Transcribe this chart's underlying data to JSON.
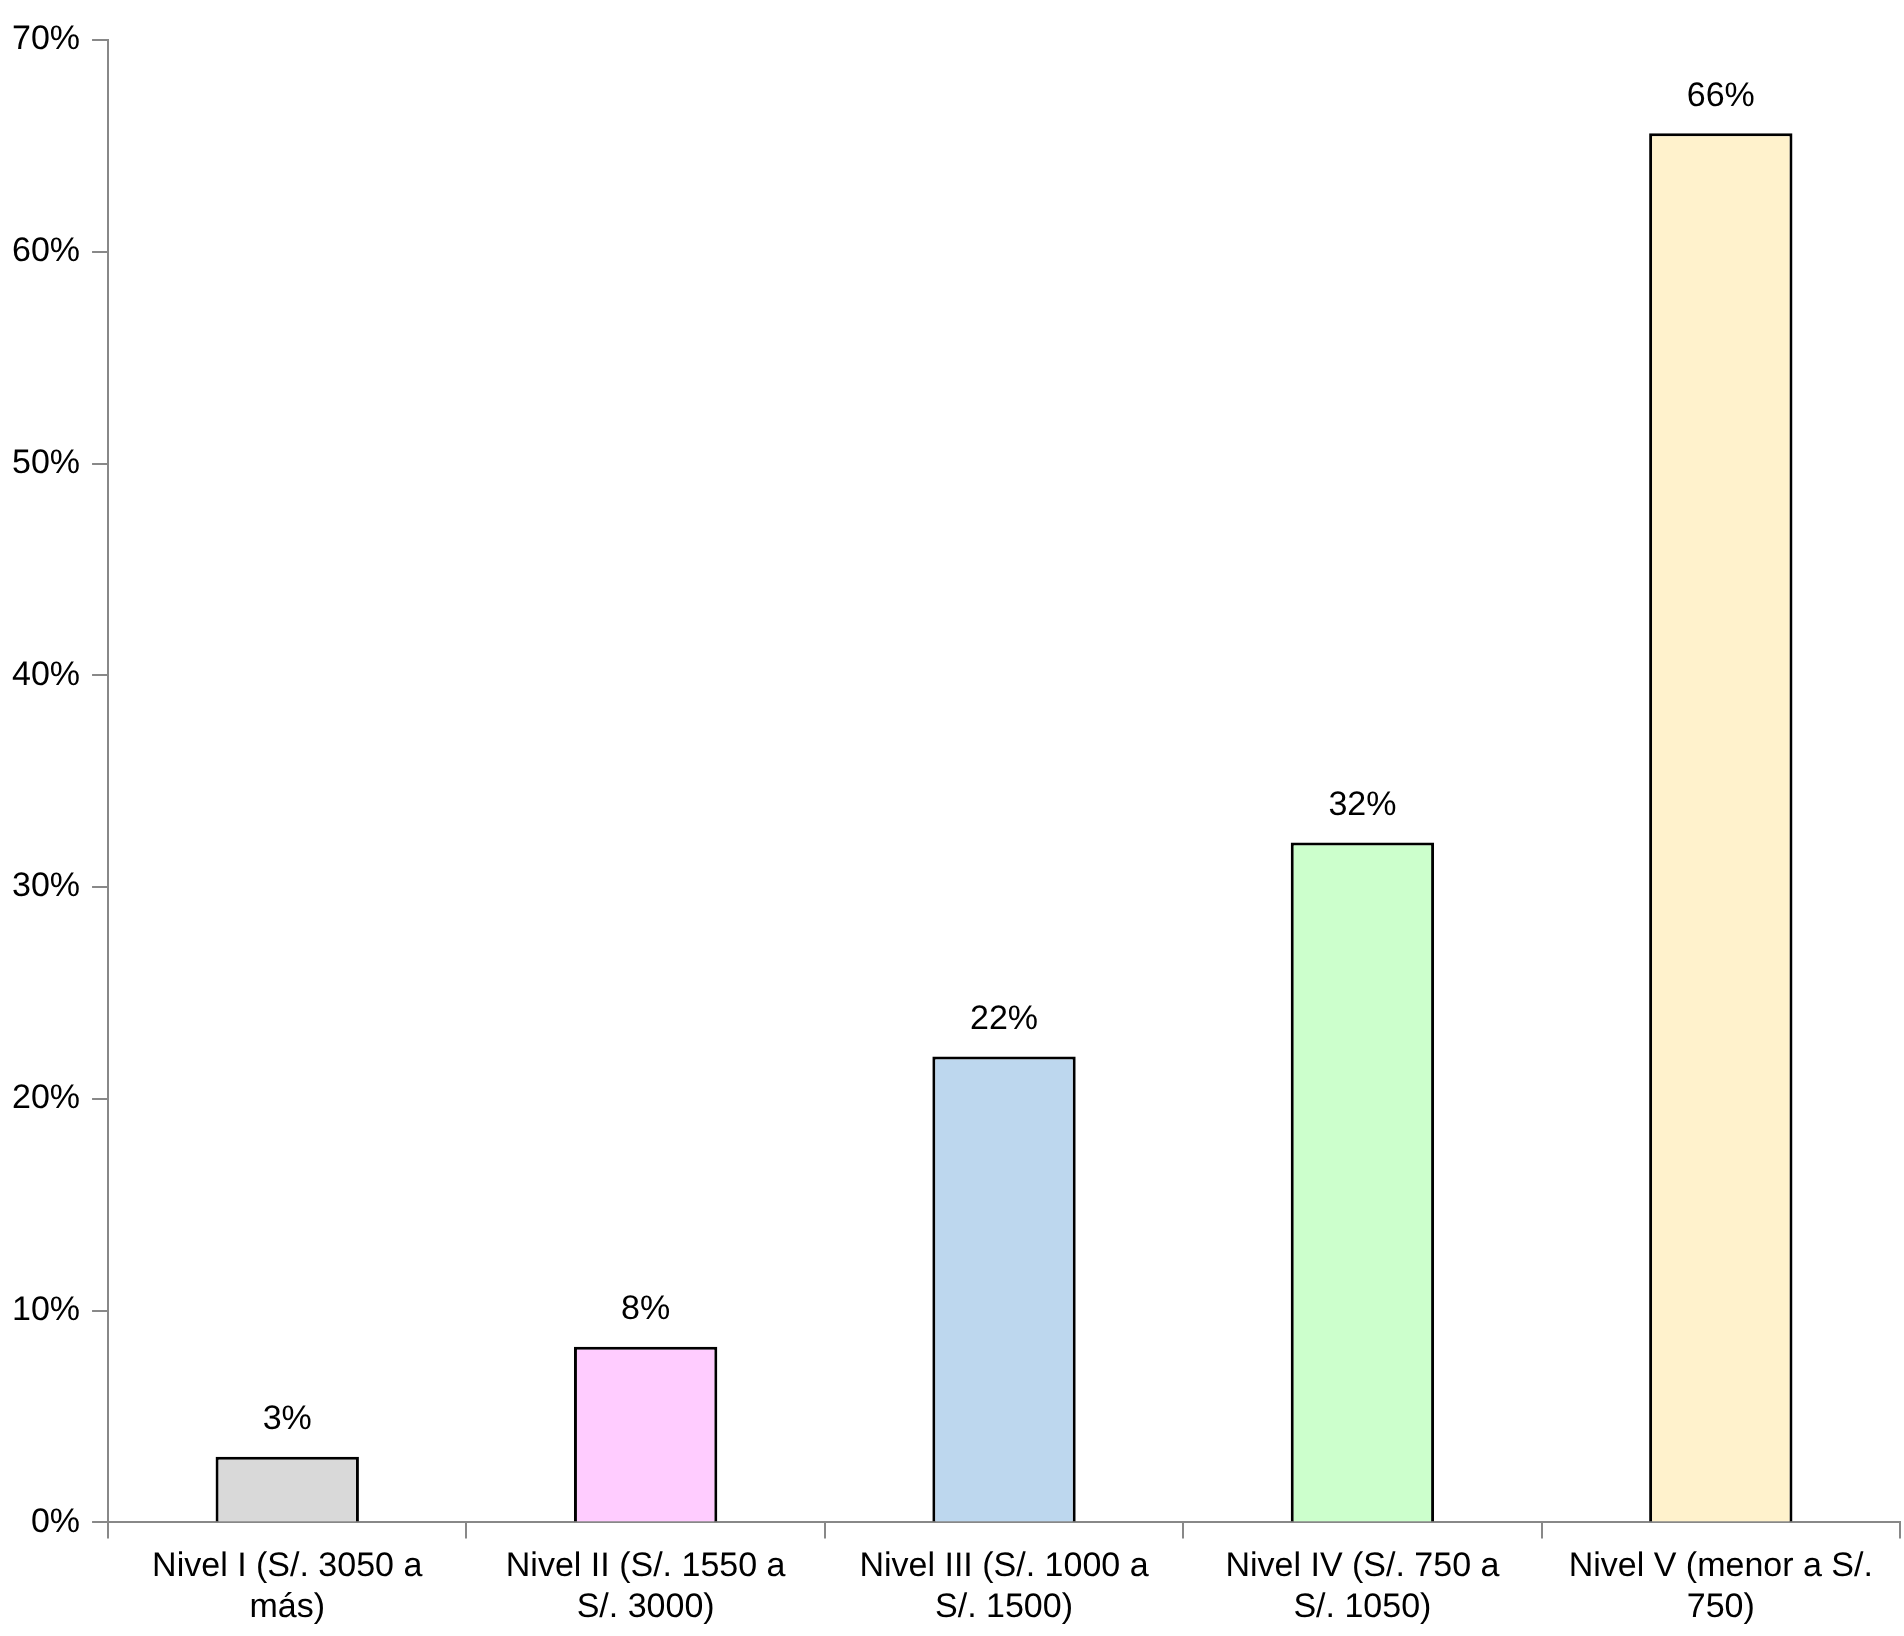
{
  "chart_data": {
    "type": "bar",
    "categories": [
      "Nivel I (S/. 3050 a más)",
      "Nivel II (S/. 1550 a S/. 3000)",
      "Nivel III (S/. 1000 a S/. 1500)",
      "Nivel IV (S/. 750 a S/. 1050)",
      "Nivel V (menor a S/. 750)"
    ],
    "values": [
      3.1,
      8.3,
      22,
      32.1,
      65.6
    ],
    "colors": [
      "#d9d9d9",
      "#ffccff",
      "#bdd7ee",
      "#ccffcc",
      "#fff2cc"
    ],
    "value_labels": [
      "3%",
      "8%",
      "22%",
      "32%",
      "66%"
    ],
    "ylim": [
      0,
      70
    ],
    "yticks": [
      {
        "value": 0,
        "label": "0%"
      },
      {
        "value": 10,
        "label": "10%"
      },
      {
        "value": 20,
        "label": "20%"
      },
      {
        "value": 30,
        "label": "30%"
      },
      {
        "value": 40,
        "label": "40%"
      },
      {
        "value": 50,
        "label": "50%"
      },
      {
        "value": 60,
        "label": "60%"
      },
      {
        "value": 70,
        "label": "70%"
      }
    ],
    "grid": false,
    "legend": false
  }
}
